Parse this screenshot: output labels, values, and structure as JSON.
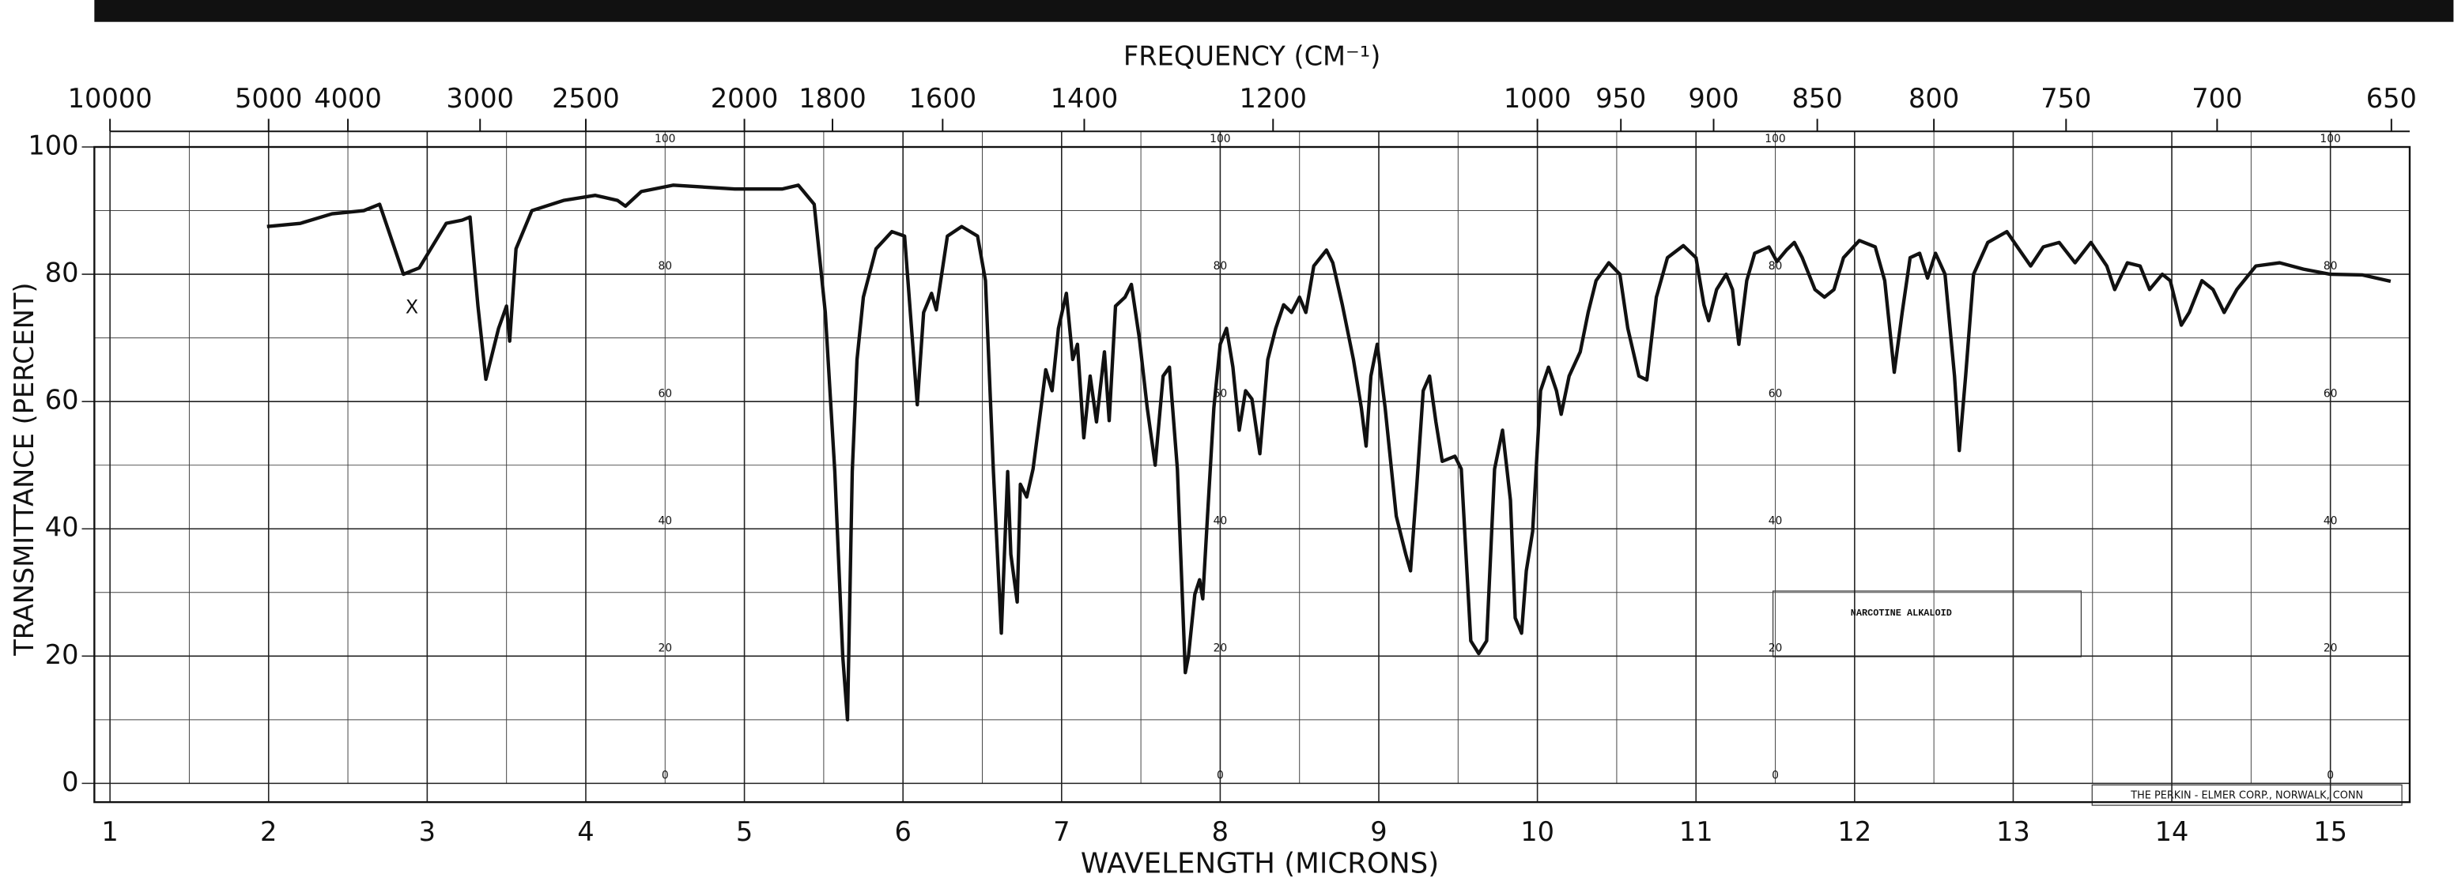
{
  "chart_data": {
    "type": "line",
    "title": "FREQUENCY (CM⁻¹)",
    "x_label": "WAVELENGTH (MICRONS)",
    "y_label": "TRANSMITTANCE (PERCENT)",
    "annotations": [
      "NARCOTINE ALKALOID",
      "THE PERKIN - ELMER CORP., NORWALK, CONN",
      "X"
    ],
    "color": "#111111",
    "grid": true,
    "xlim": [
      1,
      15.5
    ],
    "ylim": [
      0,
      100
    ],
    "xticks": [
      1,
      2,
      3,
      4,
      5,
      6,
      7,
      8,
      9,
      10,
      11,
      12,
      13,
      14,
      15
    ],
    "xminorticks": [
      1.5,
      2.5,
      3.5,
      4.5,
      5.5,
      6.5,
      7.5,
      8.5,
      9.5,
      10.5,
      11.5,
      12.5,
      13.5,
      14.5
    ],
    "yticks": [
      0,
      20,
      40,
      60,
      80,
      100
    ],
    "yminorticks": [
      10,
      30,
      50,
      70,
      90
    ],
    "x2ticks": [
      10000,
      5000,
      4000,
      3000,
      2500,
      2000,
      1800,
      1600,
      1400,
      1200,
      1000,
      950,
      900,
      850,
      800,
      750,
      700,
      650
    ],
    "x": [
      1.99,
      2.2,
      2.4,
      2.6,
      2.7,
      2.85,
      2.95,
      3.12,
      3.22,
      3.27,
      3.32,
      3.37,
      3.45,
      3.5,
      3.52,
      3.56,
      3.66,
      3.86,
      4.06,
      4.2,
      4.25,
      4.35,
      4.55,
      4.94,
      5.24,
      5.34,
      5.44,
      5.51,
      5.57,
      5.62,
      5.65,
      5.68,
      5.71,
      5.75,
      5.83,
      5.93,
      6.01,
      6.09,
      6.13,
      6.18,
      6.21,
      6.28,
      6.37,
      6.47,
      6.52,
      6.57,
      6.62,
      6.66,
      6.68,
      6.72,
      6.74,
      6.78,
      6.82,
      6.87,
      6.9,
      6.94,
      6.98,
      7.03,
      7.07,
      7.1,
      7.14,
      7.18,
      7.22,
      7.27,
      7.3,
      7.34,
      7.4,
      7.44,
      7.49,
      7.54,
      7.59,
      7.64,
      7.68,
      7.73,
      7.78,
      7.8,
      7.84,
      7.87,
      7.89,
      7.92,
      7.96,
      8.0,
      8.04,
      8.08,
      8.12,
      8.16,
      8.2,
      8.25,
      8.3,
      8.35,
      8.4,
      8.45,
      8.5,
      8.54,
      8.59,
      8.67,
      8.71,
      8.77,
      8.84,
      8.89,
      8.92,
      8.95,
      8.99,
      9.04,
      9.11,
      9.17,
      9.2,
      9.24,
      9.28,
      9.32,
      9.36,
      9.4,
      9.48,
      9.52,
      9.58,
      9.63,
      9.68,
      9.73,
      9.78,
      9.83,
      9.86,
      9.9,
      9.93,
      9.97,
      10.02,
      10.07,
      10.12,
      10.15,
      10.2,
      10.27,
      10.32,
      10.37,
      10.45,
      10.52,
      10.57,
      10.64,
      10.69,
      10.75,
      10.82,
      10.92,
      11.0,
      11.05,
      11.08,
      11.13,
      11.19,
      11.23,
      11.27,
      11.32,
      11.37,
      11.46,
      11.51,
      11.57,
      11.62,
      11.67,
      11.75,
      11.81,
      11.87,
      11.93,
      12.03,
      12.13,
      12.19,
      12.25,
      12.3,
      12.35,
      12.41,
      12.46,
      12.51,
      12.57,
      12.63,
      12.66,
      12.7,
      12.75,
      12.84,
      12.96,
      13.04,
      13.11,
      13.19,
      13.29,
      13.39,
      13.49,
      13.59,
      13.64,
      13.72,
      13.8,
      13.86,
      13.94,
      13.99,
      14.06,
      14.11,
      14.19,
      14.26,
      14.33,
      14.41,
      14.53,
      14.68,
      14.83,
      15.0,
      15.2,
      15.38
    ],
    "values": [
      87.5,
      88,
      89.5,
      90,
      91,
      80,
      81,
      88,
      88.5,
      89,
      75,
      63.5,
      71.5,
      75,
      69.5,
      84,
      90,
      91.6,
      92.4,
      91.6,
      90.7,
      93,
      94,
      93.4,
      93.4,
      94,
      91,
      74,
      49,
      20,
      10,
      49,
      66.6,
      76.4,
      84,
      86.7,
      86,
      59.5,
      74,
      77,
      74.4,
      86,
      87.5,
      86,
      79,
      49,
      23.6,
      49,
      36,
      28.5,
      47,
      45,
      49.4,
      59,
      65,
      61.7,
      71.5,
      77,
      66.6,
      69,
      54.3,
      64,
      56.8,
      67.8,
      57,
      75,
      76.4,
      78.4,
      70,
      59,
      50,
      64,
      65.4,
      49.4,
      17.4,
      20,
      29.7,
      32,
      29,
      42,
      59,
      69,
      71.5,
      65.4,
      55.5,
      61.7,
      60.4,
      51.8,
      66.6,
      71.5,
      75.2,
      74,
      76.4,
      74,
      81.3,
      83.8,
      81.8,
      75.2,
      66.6,
      59,
      53,
      64,
      69,
      59,
      42,
      36,
      33.4,
      47,
      61.7,
      64,
      56.8,
      50.6,
      51.4,
      49.4,
      22.4,
      20.4,
      22.4,
      49.4,
      55.5,
      44.5,
      26,
      23.6,
      33.4,
      39.6,
      61.7,
      65.4,
      61.7,
      58,
      64,
      67.8,
      74,
      79,
      81.8,
      80,
      71.5,
      64,
      63.4,
      76.4,
      82.6,
      84.5,
      82.6,
      75.2,
      72.7,
      77.6,
      80,
      77.6,
      69,
      79,
      83.3,
      84.3,
      82,
      83.8,
      85,
      82.6,
      77.6,
      76.4,
      77.6,
      82.6,
      85.3,
      84.3,
      79,
      64.6,
      74,
      82.6,
      83.3,
      79.4,
      83.3,
      80,
      64,
      52.3,
      64,
      80,
      85,
      86.7,
      83.8,
      81.3,
      84.3,
      85,
      81.8,
      85,
      81.3,
      77.6,
      81.8,
      81.3,
      77.6,
      80,
      79,
      72,
      74,
      79,
      77.6,
      74,
      77.6,
      81.3,
      81.8,
      80.8,
      80,
      79.9,
      78.9
    ]
  }
}
